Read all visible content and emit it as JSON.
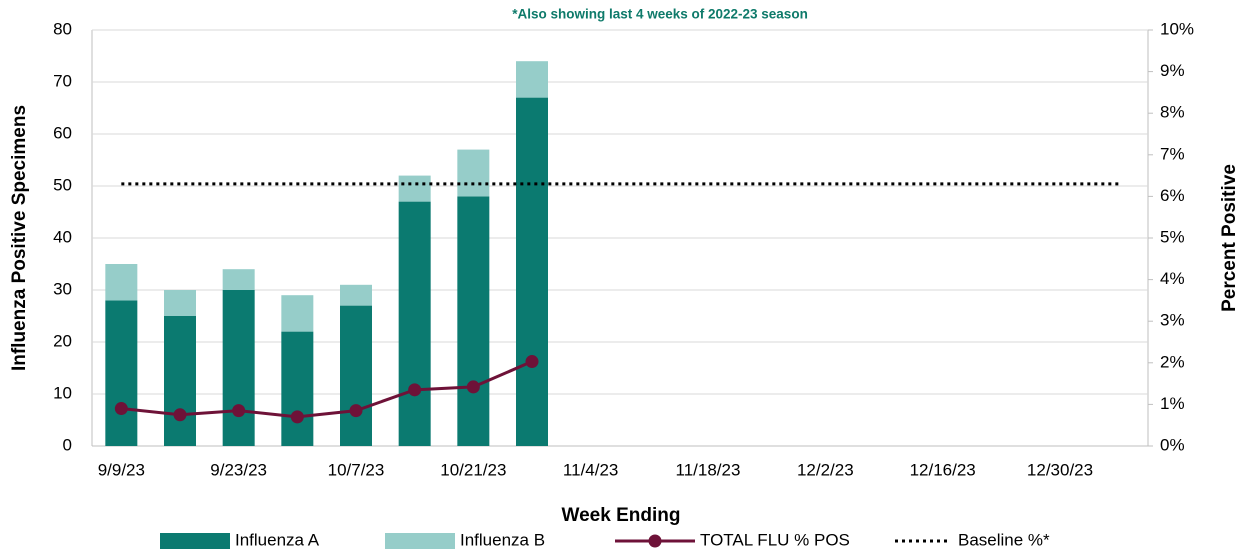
{
  "chart_data": {
    "type": "bar",
    "subtitle": "*Also showing last 4 weeks of 2022-23 season",
    "x_label": "Week Ending",
    "y_label": "Influenza Positive Specimens",
    "y2_label": "Percent Positive",
    "categories": [
      "9/9/23",
      null,
      "9/23/23",
      null,
      "10/7/23",
      null,
      "10/21/23",
      null,
      "11/4/23",
      null,
      "11/18/23",
      null,
      "12/2/23",
      null,
      "12/16/23",
      null,
      "12/30/23",
      null
    ],
    "series": [
      {
        "name": "Influenza A",
        "color": "#0b7a70",
        "values": [
          28,
          25,
          30,
          22,
          27,
          47,
          48,
          67,
          null,
          null,
          null,
          null,
          null,
          null,
          null,
          null,
          null,
          null
        ]
      },
      {
        "name": "Influenza B",
        "color": "#96cdc9",
        "values": [
          7,
          5,
          4,
          7,
          4,
          5,
          9,
          7,
          null,
          null,
          null,
          null,
          null,
          null,
          null,
          null,
          null,
          null
        ]
      },
      {
        "name": "TOTAL FLU % POS",
        "color": "#6e1238",
        "axis": "y2",
        "values": [
          0.9,
          0.75,
          0.85,
          0.7,
          0.85,
          1.35,
          1.42,
          2.03,
          null,
          null,
          null,
          null,
          null,
          null,
          null,
          null,
          null,
          null
        ]
      }
    ],
    "baseline": {
      "name": "Baseline %*",
      "value": 6.3,
      "color": "#000000"
    },
    "stacked": true,
    "grid": true,
    "ylim": [
      0,
      80
    ],
    "yticks": [
      0,
      10,
      20,
      30,
      40,
      50,
      60,
      70,
      80
    ],
    "y2lim": [
      0,
      10
    ],
    "y2ticks": [
      {
        "value": 0,
        "label": "0%"
      },
      {
        "value": 1,
        "label": "1%"
      },
      {
        "value": 2,
        "label": "2%"
      },
      {
        "value": 3,
        "label": "3%"
      },
      {
        "value": 4,
        "label": "4%"
      },
      {
        "value": 5,
        "label": "5%"
      },
      {
        "value": 6,
        "label": "6%"
      },
      {
        "value": 7,
        "label": "7%"
      },
      {
        "value": 8,
        "label": "8%"
      },
      {
        "value": 9,
        "label": "9%"
      },
      {
        "value": 10,
        "label": "10%"
      }
    ]
  }
}
